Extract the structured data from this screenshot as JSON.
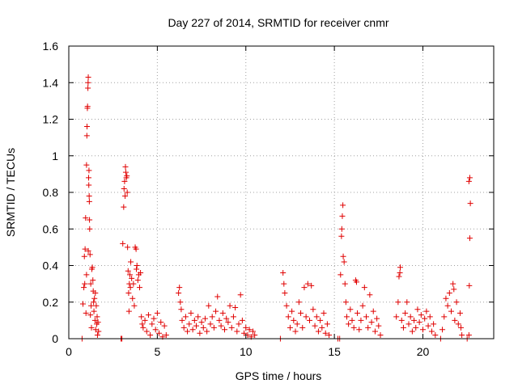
{
  "chart_data": {
    "type": "scatter",
    "title": "Day 227 of 2014, SRMTID for receiver cnmr",
    "xlabel": "GPS time / hours",
    "ylabel": "SRMTID / TECUs",
    "xlim": [
      0,
      24
    ],
    "ylim": [
      0,
      1.6
    ],
    "xticks": [
      0,
      5,
      10,
      15,
      20
    ],
    "xtick_labels": [
      "0",
      "5",
      "10",
      "15",
      "20"
    ],
    "yticks": [
      0,
      0.2,
      0.4,
      0.6,
      0.8,
      1,
      1.2,
      1.4,
      1.6
    ],
    "ytick_labels": [
      "0",
      "0.2",
      "0.4",
      "0.6",
      "0.8",
      "1",
      "1.2",
      "1.4",
      "1.6"
    ],
    "grid": true,
    "marker": "+",
    "color": "#e00000",
    "series": [
      {
        "name": "SRMTID",
        "points": [
          [
            0.75,
            0.0
          ],
          [
            0.8,
            0.19
          ],
          [
            0.85,
            0.28
          ],
          [
            0.88,
            0.45
          ],
          [
            0.9,
            0.3
          ],
          [
            0.92,
            0.49
          ],
          [
            0.95,
            0.66
          ],
          [
            0.97,
            0.14
          ],
          [
            1.0,
            0.95
          ],
          [
            1.0,
            0.35
          ],
          [
            1.02,
            1.11
          ],
          [
            1.03,
            1.16
          ],
          [
            1.05,
            1.26
          ],
          [
            1.06,
            1.27
          ],
          [
            1.08,
            1.37
          ],
          [
            1.09,
            1.4
          ],
          [
            1.1,
            1.43
          ],
          [
            1.1,
            0.48
          ],
          [
            1.12,
            0.88
          ],
          [
            1.13,
            0.84
          ],
          [
            1.14,
            0.92
          ],
          [
            1.15,
            0.78
          ],
          [
            1.16,
            0.75
          ],
          [
            1.17,
            0.65
          ],
          [
            1.18,
            0.6
          ],
          [
            1.2,
            0.46
          ],
          [
            1.22,
            0.13
          ],
          [
            1.24,
            0.3
          ],
          [
            1.26,
            0.18
          ],
          [
            1.28,
            0.06
          ],
          [
            1.3,
            0.38
          ],
          [
            1.33,
            0.39
          ],
          [
            1.36,
            0.32
          ],
          [
            1.38,
            0.26
          ],
          [
            1.4,
            0.2
          ],
          [
            1.42,
            0.15
          ],
          [
            1.45,
            0.22
          ],
          [
            1.48,
            0.1
          ],
          [
            1.5,
            0.25
          ],
          [
            1.52,
            0.05
          ],
          [
            1.55,
            0.18
          ],
          [
            1.58,
            0.08
          ],
          [
            1.6,
            0.12
          ],
          [
            1.62,
            0.02
          ],
          [
            1.65,
            0.09
          ],
          [
            1.68,
            0.04
          ],
          [
            2.95,
            0.0
          ],
          [
            3.0,
            0.0
          ],
          [
            3.05,
            0.52
          ],
          [
            3.1,
            0.72
          ],
          [
            3.12,
            0.82
          ],
          [
            3.15,
            0.86
          ],
          [
            3.18,
            0.78
          ],
          [
            3.2,
            0.94
          ],
          [
            3.22,
            0.91
          ],
          [
            3.25,
            0.88
          ],
          [
            3.28,
            0.89
          ],
          [
            3.3,
            0.8
          ],
          [
            3.32,
            0.5
          ],
          [
            3.35,
            0.37
          ],
          [
            3.38,
            0.25
          ],
          [
            3.4,
            0.15
          ],
          [
            3.42,
            0.3
          ],
          [
            3.45,
            0.35
          ],
          [
            3.48,
            0.28
          ],
          [
            3.5,
            0.42
          ],
          [
            3.55,
            0.33
          ],
          [
            3.6,
            0.22
          ],
          [
            3.65,
            0.3
          ],
          [
            3.7,
            0.18
          ],
          [
            3.75,
            0.5
          ],
          [
            3.8,
            0.49
          ],
          [
            3.82,
            0.38
          ],
          [
            3.85,
            0.4
          ],
          [
            3.9,
            0.32
          ],
          [
            3.95,
            0.35
          ],
          [
            4.0,
            0.28
          ],
          [
            4.05,
            0.36
          ],
          [
            4.1,
            0.12
          ],
          [
            4.15,
            0.08
          ],
          [
            4.2,
            0.06
          ],
          [
            4.3,
            0.1
          ],
          [
            4.4,
            0.04
          ],
          [
            4.5,
            0.13
          ],
          [
            4.6,
            0.02
          ],
          [
            4.7,
            0.08
          ],
          [
            4.8,
            0.11
          ],
          [
            4.9,
            0.05
          ],
          [
            5.0,
            0.14
          ],
          [
            5.1,
            0.03
          ],
          [
            5.2,
            0.09
          ],
          [
            5.3,
            0.01
          ],
          [
            5.4,
            0.07
          ],
          [
            5.5,
            0.02
          ],
          [
            6.2,
            0.25
          ],
          [
            6.25,
            0.28
          ],
          [
            6.3,
            0.2
          ],
          [
            6.35,
            0.16
          ],
          [
            6.4,
            0.1
          ],
          [
            6.5,
            0.06
          ],
          [
            6.6,
            0.12
          ],
          [
            6.7,
            0.04
          ],
          [
            6.8,
            0.08
          ],
          [
            6.9,
            0.14
          ],
          [
            7.0,
            0.05
          ],
          [
            7.1,
            0.1
          ],
          [
            7.2,
            0.07
          ],
          [
            7.3,
            0.12
          ],
          [
            7.4,
            0.03
          ],
          [
            7.5,
            0.09
          ],
          [
            7.6,
            0.06
          ],
          [
            7.7,
            0.11
          ],
          [
            7.8,
            0.04
          ],
          [
            7.9,
            0.18
          ],
          [
            8.0,
            0.08
          ],
          [
            8.1,
            0.12
          ],
          [
            8.2,
            0.06
          ],
          [
            8.3,
            0.15
          ],
          [
            8.4,
            0.23
          ],
          [
            8.5,
            0.1
          ],
          [
            8.6,
            0.07
          ],
          [
            8.7,
            0.14
          ],
          [
            8.8,
            0.05
          ],
          [
            8.9,
            0.11
          ],
          [
            9.0,
            0.09
          ],
          [
            9.1,
            0.18
          ],
          [
            9.2,
            0.06
          ],
          [
            9.3,
            0.12
          ],
          [
            9.4,
            0.17
          ],
          [
            9.5,
            0.04
          ],
          [
            9.6,
            0.08
          ],
          [
            9.7,
            0.24
          ],
          [
            9.8,
            0.1
          ],
          [
            9.9,
            0.03
          ],
          [
            10.0,
            0.06
          ],
          [
            10.1,
            0.02
          ],
          [
            10.2,
            0.05
          ],
          [
            10.3,
            0.01
          ],
          [
            10.4,
            0.04
          ],
          [
            10.5,
            0.02
          ],
          [
            11.95,
            0.0
          ],
          [
            12.1,
            0.36
          ],
          [
            12.15,
            0.3
          ],
          [
            12.2,
            0.25
          ],
          [
            12.3,
            0.18
          ],
          [
            12.4,
            0.12
          ],
          [
            12.5,
            0.06
          ],
          [
            12.6,
            0.15
          ],
          [
            12.7,
            0.1
          ],
          [
            12.8,
            0.04
          ],
          [
            12.9,
            0.08
          ],
          [
            13.0,
            0.2
          ],
          [
            13.1,
            0.14
          ],
          [
            13.2,
            0.06
          ],
          [
            13.3,
            0.28
          ],
          [
            13.4,
            0.12
          ],
          [
            13.5,
            0.3
          ],
          [
            13.6,
            0.1
          ],
          [
            13.7,
            0.29
          ],
          [
            13.8,
            0.16
          ],
          [
            13.9,
            0.07
          ],
          [
            14.0,
            0.12
          ],
          [
            14.1,
            0.04
          ],
          [
            14.2,
            0.1
          ],
          [
            14.3,
            0.06
          ],
          [
            14.4,
            0.14
          ],
          [
            14.5,
            0.03
          ],
          [
            14.6,
            0.08
          ],
          [
            14.7,
            0.02
          ],
          [
            15.2,
            0.0
          ],
          [
            15.3,
            0.0
          ],
          [
            15.35,
            0.35
          ],
          [
            15.4,
            0.56
          ],
          [
            15.42,
            0.6
          ],
          [
            15.45,
            0.67
          ],
          [
            15.48,
            0.73
          ],
          [
            15.5,
            0.45
          ],
          [
            15.55,
            0.42
          ],
          [
            15.6,
            0.3
          ],
          [
            15.65,
            0.2
          ],
          [
            15.7,
            0.12
          ],
          [
            15.8,
            0.08
          ],
          [
            15.9,
            0.16
          ],
          [
            16.0,
            0.1
          ],
          [
            16.1,
            0.06
          ],
          [
            16.2,
            0.32
          ],
          [
            16.25,
            0.31
          ],
          [
            16.3,
            0.14
          ],
          [
            16.4,
            0.05
          ],
          [
            16.5,
            0.1
          ],
          [
            16.6,
            0.18
          ],
          [
            16.7,
            0.28
          ],
          [
            16.8,
            0.12
          ],
          [
            16.9,
            0.06
          ],
          [
            17.0,
            0.24
          ],
          [
            17.1,
            0.09
          ],
          [
            17.2,
            0.15
          ],
          [
            17.3,
            0.04
          ],
          [
            17.4,
            0.11
          ],
          [
            17.5,
            0.07
          ],
          [
            17.6,
            0.02
          ],
          [
            18.5,
            0.12
          ],
          [
            18.6,
            0.2
          ],
          [
            18.65,
            0.34
          ],
          [
            18.7,
            0.36
          ],
          [
            18.72,
            0.39
          ],
          [
            18.8,
            0.1
          ],
          [
            18.9,
            0.06
          ],
          [
            19.0,
            0.14
          ],
          [
            19.1,
            0.2
          ],
          [
            19.2,
            0.08
          ],
          [
            19.3,
            0.12
          ],
          [
            19.4,
            0.04
          ],
          [
            19.5,
            0.1
          ],
          [
            19.6,
            0.06
          ],
          [
            19.7,
            0.16
          ],
          [
            19.8,
            0.09
          ],
          [
            19.9,
            0.13
          ],
          [
            20.0,
            0.05
          ],
          [
            20.1,
            0.11
          ],
          [
            20.2,
            0.15
          ],
          [
            20.3,
            0.07
          ],
          [
            20.4,
            0.12
          ],
          [
            20.5,
            0.04
          ],
          [
            20.6,
            0.08
          ],
          [
            20.7,
            0.02
          ],
          [
            21.0,
            0.0
          ],
          [
            21.1,
            0.05
          ],
          [
            21.2,
            0.12
          ],
          [
            21.3,
            0.22
          ],
          [
            21.4,
            0.18
          ],
          [
            21.5,
            0.25
          ],
          [
            21.6,
            0.15
          ],
          [
            21.7,
            0.3
          ],
          [
            21.75,
            0.27
          ],
          [
            21.8,
            0.1
          ],
          [
            21.9,
            0.2
          ],
          [
            22.0,
            0.08
          ],
          [
            22.1,
            0.14
          ],
          [
            22.15,
            0.06
          ],
          [
            22.2,
            0.02
          ],
          [
            22.5,
            0.0
          ],
          [
            22.6,
            0.02
          ],
          [
            22.62,
            0.29
          ],
          [
            22.65,
            0.55
          ],
          [
            22.68,
            0.74
          ],
          [
            22.6,
            0.86
          ],
          [
            22.65,
            0.88
          ]
        ]
      }
    ]
  }
}
